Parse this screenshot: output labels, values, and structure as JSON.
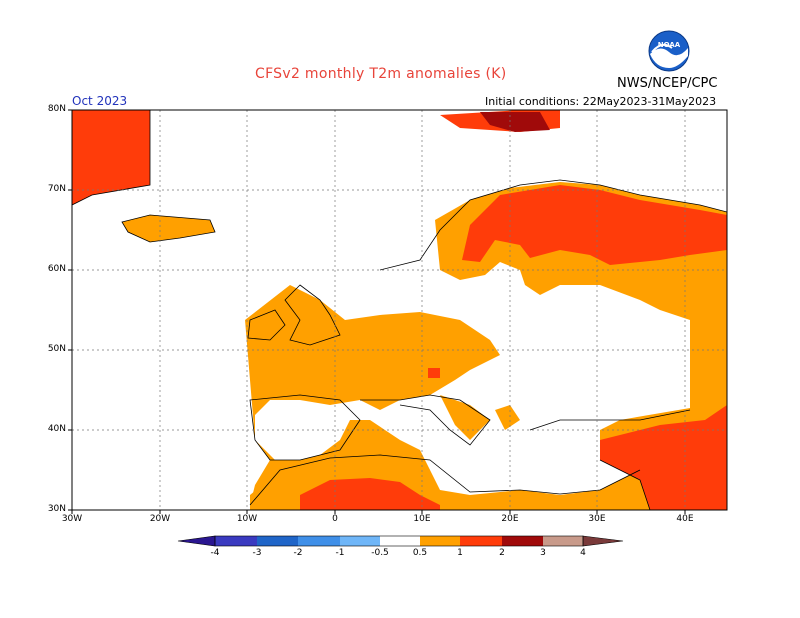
{
  "title": "CFSv2 monthly T2m anomalies (K)",
  "agency": "NWS/NCEP/CPC",
  "logo_text": "NOAA",
  "month": "Oct 2023",
  "initial_conditions": "Initial conditions: 22May2023-31May2023",
  "lat_labels": [
    "80N",
    "70N",
    "60N",
    "50N",
    "40N",
    "30N"
  ],
  "lon_labels": [
    "30W",
    "20W",
    "10W",
    "0",
    "10E",
    "20E",
    "30E",
    "40E"
  ],
  "colorbar_labels": [
    "-4",
    "-3",
    "-2",
    "-1",
    "-0.5",
    "0.5",
    "1",
    "2",
    "3",
    "4"
  ],
  "colors": {
    "lt_m4": "#2a1690",
    "m4_m3": "#3a3ac0",
    "m3_m2": "#1f65c8",
    "m2_m1": "#3f8fe8",
    "m1_m05": "#6fb6f8",
    "neutral": "#ffffff",
    "p05_1": "#ffa000",
    "p1_2": "#ff3c0a",
    "p2_3": "#a00a0a",
    "p3_4": "#c89a8a",
    "gt_4": "#7a3a3a",
    "title": "#e8443a",
    "month": "#2233bb"
  }
}
